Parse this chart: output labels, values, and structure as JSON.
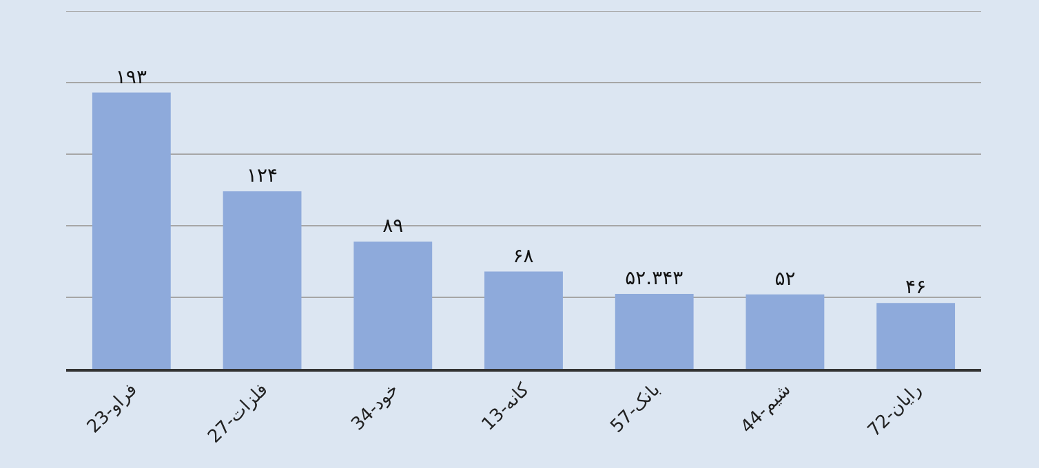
{
  "chart_data": {
    "type": "bar",
    "categories": [
      "23-فراو",
      "27-فلزات",
      "34-خود",
      "13-کانه",
      "57-بانک",
      "44-شیم",
      "72-رایان"
    ],
    "values": [
      193,
      124,
      89,
      68,
      52.343,
      52,
      46
    ],
    "value_labels": [
      "۱۹۳",
      "۱۲۴",
      "۸۹",
      "۶۸",
      "۵۲.۳۴۳",
      "۵۲",
      "۴۶"
    ],
    "color": "#8eaadb",
    "ylim": [
      0,
      250
    ],
    "yticks": [
      {
        "value": 0,
        "label": null
      },
      {
        "value": 50,
        "label": null
      },
      {
        "value": 100,
        "label": null
      },
      {
        "value": 150,
        "label": null
      },
      {
        "value": 200,
        "label": null
      },
      {
        "value": 250,
        "label": null
      }
    ],
    "grid": "y",
    "tick_labels": "x",
    "legend": false
  }
}
